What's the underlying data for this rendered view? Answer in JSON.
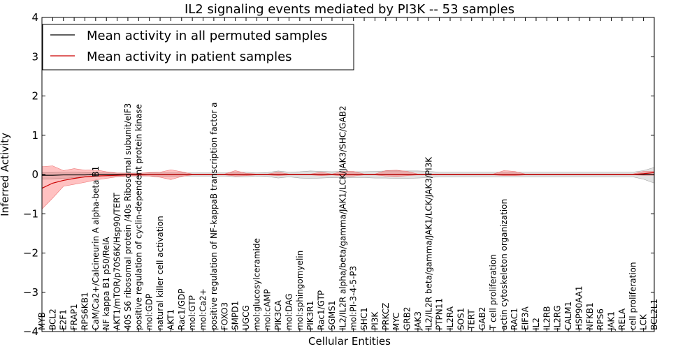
{
  "chart_data": {
    "type": "line",
    "title": "IL2 signaling events mediated by PI3K -- 53 samples",
    "xlabel": "Cellular Entities",
    "ylabel": "Inferred Activity",
    "ylim": [
      -4,
      4
    ],
    "yticks": [
      "−4",
      "−3",
      "−2",
      "−1",
      "0",
      "1",
      "2",
      "3",
      "4"
    ],
    "legend_position": "top-left",
    "categories": [
      "MYB",
      "BCL2",
      "E2F1",
      "FRAP1",
      "RPS6KB1",
      "CaM/Ca2+/Calcineurin A alpha-beta B1",
      "NF kappa B1 p50/RelA",
      "AKT1/mTOR/p70S6K/Hsp90/TERT",
      "40S S6 ribosomal protein /40s Ribosomal subunit/eIF3",
      "positive regulation of cyclin-dependent protein kinase",
      "mol:GDP",
      "natural killer cell activation",
      "AKT1",
      "Rac1/GDP",
      "mol:GTP",
      "mol:Ca2+",
      "positive regulation of NF-kappaB transcription factor a",
      "FOXO3",
      "SMPD1",
      "UGCG",
      "mol:glucosylceramide",
      "mol:cAMP",
      "PIK3CA",
      "mol:DAG",
      "mol:sphingomyelin",
      "PIK3R1",
      "Rac1/GTP",
      "SGMS1",
      "IL2/IL2R alpha/beta/gamma/JAK1/LCK/JAK3/SHC/GAB2",
      "mol:PI-3-4-5-P3",
      "SHC1",
      "PI3K",
      "PRKCZ",
      "MYC",
      "GRB2",
      "JAK3",
      "IL2/IL2R beta/gamma/JAK1/LCK/JAK3/PI3K",
      "PTPN11",
      "IL2RA",
      "SOS1",
      "TERT",
      "GAB2",
      "T cell proliferation",
      "actin cytoskeleton organization",
      "RAC1",
      "EIF3A",
      "IL2",
      "IL2RB",
      "IL2RG",
      "CALM1",
      "HSP90AA1",
      "NFKB1",
      "RPS6",
      "JAK1",
      "RELA",
      "cell proliferation",
      "LCK",
      "BCL2L1"
    ],
    "series": [
      {
        "name": "Mean activity in all permuted samples",
        "color": "#000000",
        "values": [
          -0.02,
          -0.02,
          -0.01,
          -0.01,
          -0.01,
          0,
          0,
          0,
          0,
          0,
          0,
          0,
          0,
          0,
          0,
          0,
          0,
          0,
          0,
          0,
          0,
          0,
          0,
          0,
          0,
          0,
          0,
          0,
          0,
          0,
          0,
          0,
          0,
          0,
          0,
          0,
          0,
          0,
          0,
          0,
          0,
          0,
          0,
          0,
          0,
          0,
          0,
          0,
          0,
          0,
          0,
          0,
          0,
          0,
          0,
          0,
          0,
          0
        ],
        "band_upper": [
          0.05,
          0.05,
          0.06,
          0.06,
          0.05,
          0.04,
          0.04,
          0.04,
          0.04,
          0.04,
          0.04,
          0.04,
          0.04,
          0.04,
          0.04,
          0.04,
          0.04,
          0.04,
          0.06,
          0.06,
          0.04,
          0.05,
          0.09,
          0.06,
          0.07,
          0.09,
          0.08,
          0.07,
          0.08,
          0.07,
          0.07,
          0.08,
          0.09,
          0.09,
          0.09,
          0.09,
          0.08,
          0.06,
          0.06,
          0.06,
          0.06,
          0.06,
          0.06,
          0.06,
          0.06,
          0.06,
          0.06,
          0.06,
          0.06,
          0.06,
          0.06,
          0.06,
          0.06,
          0.06,
          0.06,
          0.06,
          0.1,
          0.18
        ],
        "band_lower": [
          -0.12,
          -0.11,
          -0.1,
          -0.08,
          -0.06,
          -0.04,
          -0.04,
          -0.04,
          -0.04,
          -0.04,
          -0.04,
          -0.04,
          -0.04,
          -0.04,
          -0.04,
          -0.04,
          -0.04,
          -0.04,
          -0.06,
          -0.06,
          -0.04,
          -0.05,
          -0.09,
          -0.06,
          -0.09,
          -0.1,
          -0.09,
          -0.08,
          -0.09,
          -0.08,
          -0.08,
          -0.09,
          -0.09,
          -0.1,
          -0.1,
          -0.09,
          -0.08,
          -0.06,
          -0.06,
          -0.06,
          -0.06,
          -0.06,
          -0.06,
          -0.06,
          -0.06,
          -0.06,
          -0.06,
          -0.06,
          -0.06,
          -0.06,
          -0.06,
          -0.06,
          -0.06,
          -0.06,
          -0.06,
          -0.06,
          -0.12,
          -0.22
        ]
      },
      {
        "name": "Mean activity in patient samples",
        "color": "#cc0000",
        "values": [
          -0.35,
          -0.22,
          -0.15,
          -0.1,
          -0.06,
          -0.04,
          -0.03,
          -0.02,
          -0.01,
          -0.01,
          0,
          0,
          0,
          0,
          0,
          0,
          0,
          0,
          0,
          0,
          0,
          0,
          0,
          0,
          0,
          0,
          0,
          0,
          0,
          0,
          0,
          0,
          0,
          0,
          0,
          0,
          0,
          0,
          0,
          0,
          0,
          0,
          0,
          0,
          0,
          0,
          0,
          0,
          0,
          0,
          0,
          0,
          0,
          0,
          0,
          0,
          0.02,
          0.05
        ],
        "band_upper": [
          0.2,
          0.22,
          0.1,
          0.15,
          0.11,
          0.12,
          0.07,
          0.04,
          0.03,
          0.03,
          0.05,
          0.06,
          0.12,
          0.07,
          0.01,
          0.01,
          0.01,
          0.01,
          0.1,
          0.03,
          0.01,
          0.01,
          0.06,
          0.01,
          0.01,
          0.01,
          0.06,
          0.01,
          0.08,
          0.08,
          0.01,
          0.01,
          0.1,
          0.11,
          0.08,
          0.01,
          0.01,
          0.01,
          0.01,
          0.01,
          0.01,
          0.01,
          0.01,
          0.1,
          0.08,
          0.01,
          0.01,
          0.01,
          0.01,
          0.01,
          0.01,
          0.01,
          0.01,
          0.01,
          0.01,
          0.01,
          0.08,
          0.08
        ],
        "band_lower": [
          -0.88,
          -0.6,
          -0.3,
          -0.25,
          -0.2,
          -0.14,
          -0.1,
          -0.06,
          -0.04,
          -0.03,
          -0.04,
          -0.07,
          -0.13,
          -0.05,
          -0.01,
          -0.01,
          -0.01,
          -0.01,
          -0.04,
          -0.03,
          -0.01,
          -0.01,
          -0.03,
          -0.01,
          -0.01,
          -0.01,
          -0.03,
          -0.01,
          -0.04,
          -0.04,
          -0.01,
          -0.01,
          -0.04,
          -0.05,
          -0.03,
          -0.01,
          -0.01,
          -0.01,
          -0.01,
          -0.01,
          -0.01,
          -0.01,
          -0.01,
          -0.03,
          -0.03,
          -0.01,
          -0.01,
          -0.01,
          -0.01,
          -0.01,
          -0.01,
          -0.01,
          -0.01,
          -0.01,
          -0.01,
          -0.01,
          -0.02,
          -0.02
        ]
      }
    ]
  }
}
